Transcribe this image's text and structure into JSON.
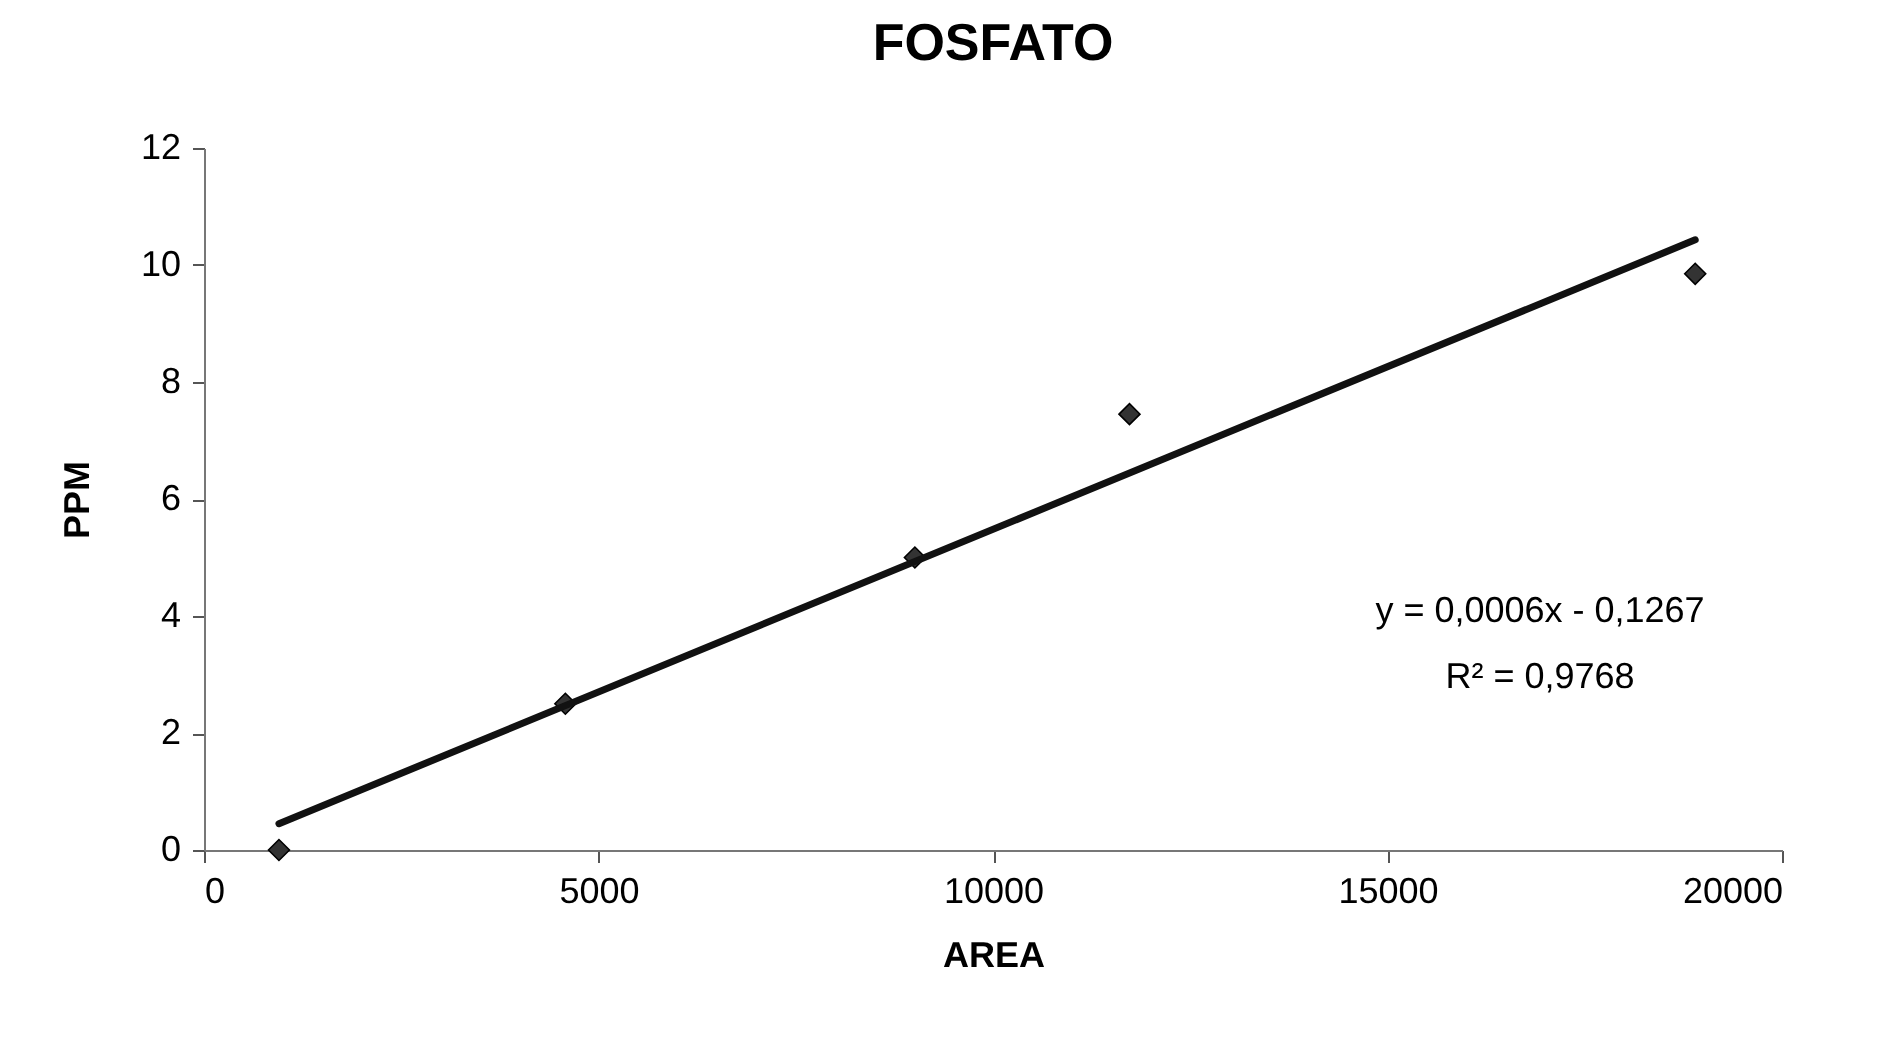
{
  "chart_data": {
    "type": "scatter",
    "title": "FOSFATO",
    "xlabel": "AREA",
    "ylabel": "PPM",
    "xlim": [
      0,
      20000
    ],
    "xticks": [
      0,
      5000,
      10000,
      15000,
      20000
    ],
    "ylim": [
      0,
      12
    ],
    "yticks": [
      0,
      2,
      4,
      6,
      8,
      10,
      12
    ],
    "grid": false,
    "marker": "diamond",
    "series": [
      {
        "color": "#333333",
        "x": [
          950,
          4580,
          9010,
          11730,
          18900
        ],
        "values": [
          0,
          2.5,
          5,
          7.45,
          9.85
        ]
      },
      {
        "type": "line",
        "color": "#111111",
        "marker": "none",
        "line_style": "solid",
        "x": [
          950,
          18900
        ],
        "values": [
          0.45,
          10.43
        ]
      }
    ],
    "annotations": [
      "y = 0,0006x - 0,1267",
      "R² = 0,9768"
    ]
  }
}
